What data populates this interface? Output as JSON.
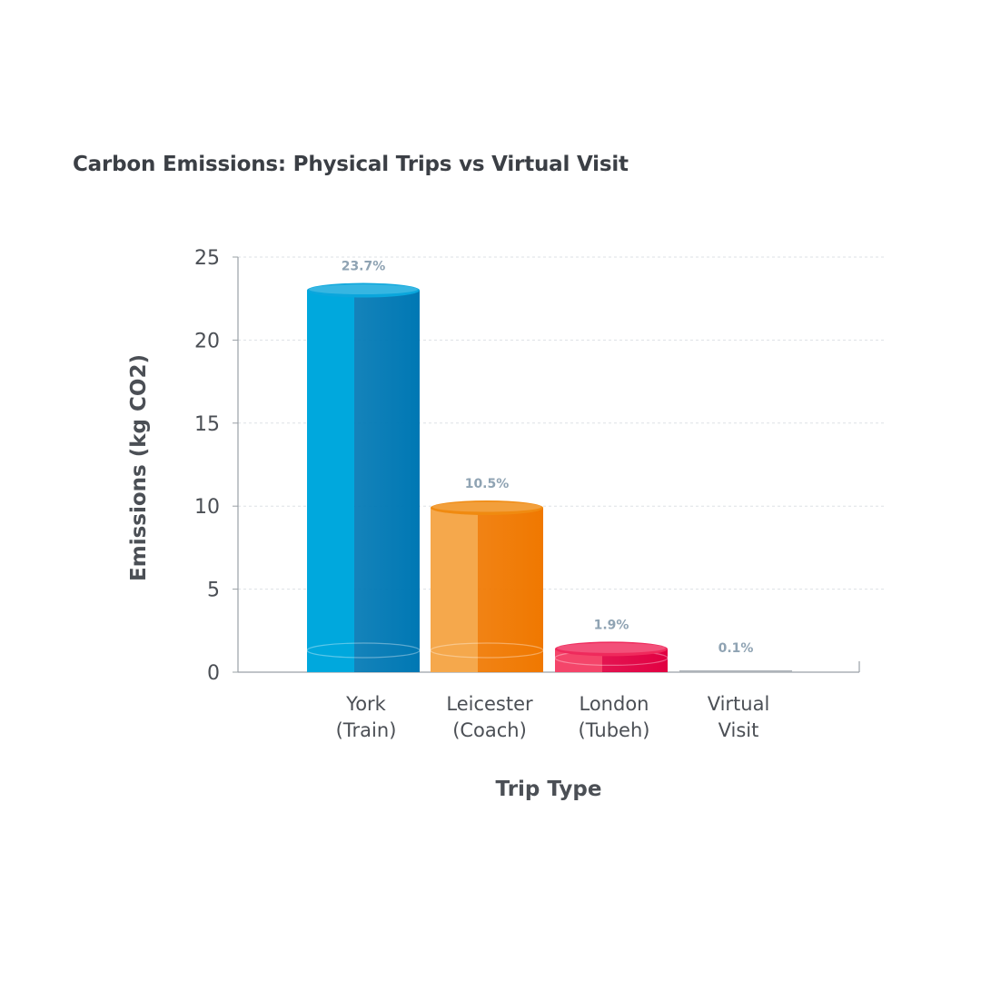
{
  "chart_data": {
    "type": "bar",
    "title": "Carbon Emissions: Physical Trips vs Virtual Visit",
    "xlabel": "Trip Type",
    "ylabel": "Emissions (kg CO2)",
    "ylim": [
      0,
      25
    ],
    "yticks": [
      0,
      5,
      10,
      15,
      20,
      25
    ],
    "grid": true,
    "categories": [
      [
        "York",
        "(Train)"
      ],
      [
        "Leicester",
        "(Coach)"
      ],
      [
        "London",
        "(Tubeh)"
      ],
      [
        "Virtual",
        "Visit"
      ]
    ],
    "values": [
      23.0,
      9.9,
      1.4,
      0.05
    ],
    "data_labels": [
      "23.7%",
      "10.5%",
      "1.9%",
      "0.1%"
    ],
    "colors": [
      {
        "light": "#00a8dd",
        "dark": "#0078b4",
        "top": "#0aa6dc"
      },
      {
        "light": "#f5a84c",
        "dark": "#f07800",
        "top": "#f08a10"
      },
      {
        "light": "#f4456a",
        "dark": "#e10042",
        "top": "#ef2a5c"
      },
      {
        "light": "#d0d4d8",
        "dark": "#aeb4ba",
        "top": "#c4c9ce"
      }
    ]
  }
}
